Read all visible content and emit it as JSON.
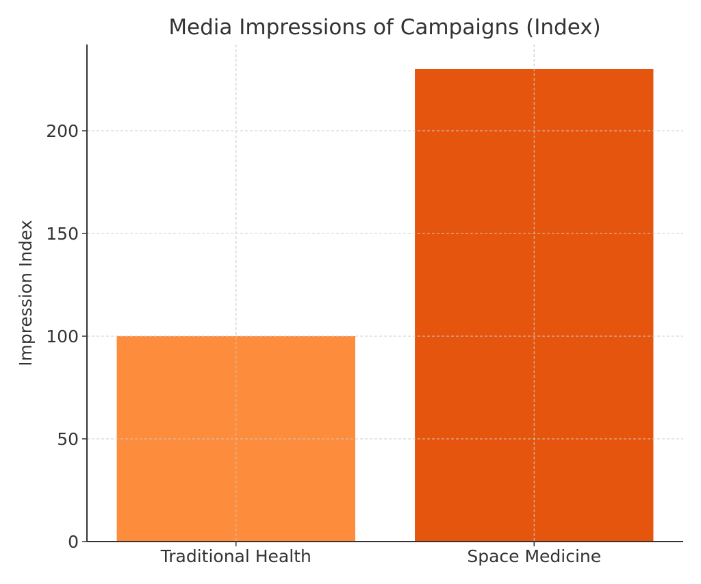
{
  "chart_data": {
    "type": "bar",
    "title": "Media Impressions of Campaigns (Index)",
    "xlabel": "",
    "ylabel": "Impression Index",
    "categories": [
      "Traditional Health",
      "Space Medicine"
    ],
    "values": [
      100,
      230
    ],
    "colors": [
      "#fd8c3c",
      "#e6550d"
    ],
    "ylim": [
      0,
      242
    ],
    "yticks": [
      0,
      50,
      100,
      150,
      200
    ],
    "grid": true
  }
}
